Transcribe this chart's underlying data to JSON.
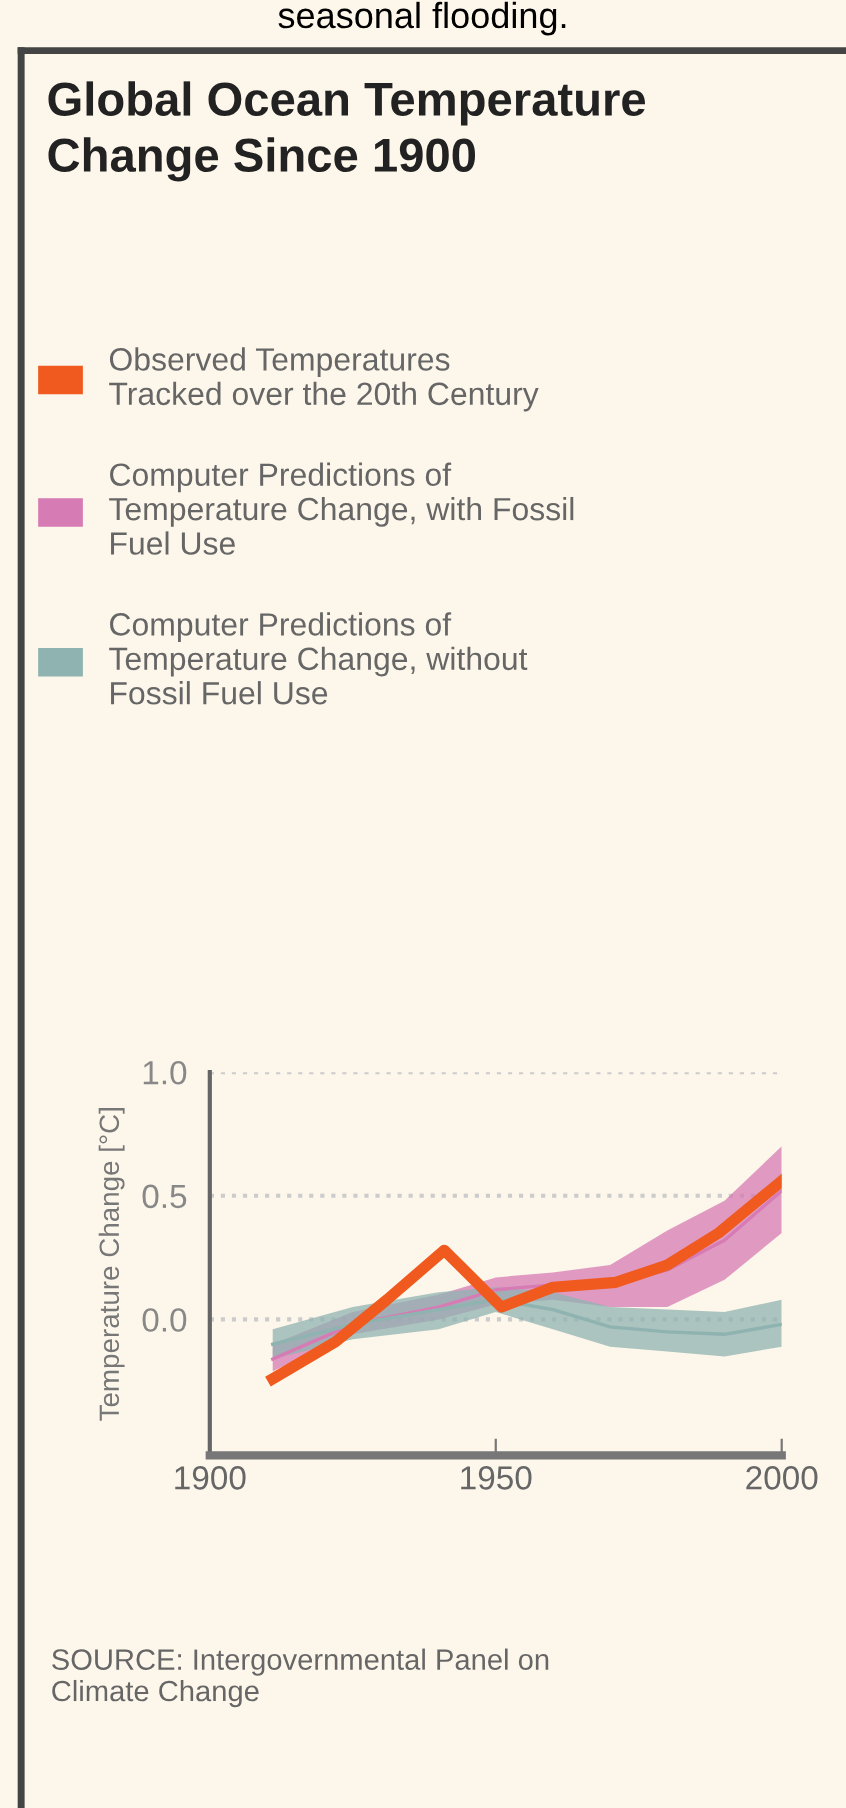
{
  "chart_data": {
    "type": "line",
    "title": "Global Ocean Temperature\nChange Since 1900",
    "ylabel": "Temperature Change [°C]",
    "xlim": [
      1900,
      2000
    ],
    "xticks": [
      1900,
      1950,
      2000
    ],
    "ylim": [
      -0.55,
      1.0
    ],
    "yticks": [
      {
        "value": 0,
        "label": "0.0"
      },
      {
        "value": 0.5,
        "label": "0.5"
      },
      {
        "value": 1.0,
        "label": "1.0"
      }
    ],
    "grid": "y",
    "legend": "top left",
    "series": [
      {
        "name": "Observed Temperatures\nTracked over the 20th Century",
        "color": "#f05a1e",
        "x": [
          1911,
          1922,
          1931,
          1941,
          1951,
          1960,
          1971,
          1980,
          1989,
          2000
        ],
        "values": [
          -0.24,
          -0.09,
          0.08,
          0.28,
          0.05,
          0.13,
          0.15,
          0.22,
          0.35,
          0.56
        ]
      },
      {
        "name": "Computer Predictions of\nTemperature Change, with Fossil\nFuel Use",
        "type": "line",
        "color": "#d67bb4",
        "x": [
          1911,
          1925,
          1940,
          1950,
          1960,
          1970,
          1980,
          1990,
          2000
        ],
        "values": [
          -0.16,
          -0.02,
          0.05,
          0.12,
          0.14,
          0.14,
          0.2,
          0.32,
          0.52
        ],
        "lower": [
          -0.21,
          -0.06,
          0.0,
          0.06,
          0.08,
          0.05,
          0.05,
          0.16,
          0.35
        ],
        "upper": [
          -0.1,
          0.03,
          0.1,
          0.17,
          0.19,
          0.22,
          0.36,
          0.48,
          0.7
        ]
      },
      {
        "name": "Computer Predictions of\nTemperature Change, without\nFossil Fuel Use",
        "type": "line",
        "color": "#8fb3b0",
        "x": [
          1911,
          1925,
          1940,
          1950,
          1960,
          1970,
          1980,
          1990,
          2000
        ],
        "values": [
          -0.1,
          -0.02,
          0.04,
          0.08,
          0.04,
          -0.03,
          -0.05,
          -0.06,
          -0.02
        ],
        "lower": [
          -0.16,
          -0.08,
          -0.04,
          0.03,
          -0.04,
          -0.11,
          -0.13,
          -0.15,
          -0.11
        ],
        "upper": [
          -0.04,
          0.05,
          0.11,
          0.13,
          0.11,
          0.05,
          0.04,
          0.03,
          0.08
        ]
      }
    ],
    "annotations": [
      "seasonal flooding.",
      "SOURCE: Intergovernmental Panel on\nClimate Change"
    ]
  }
}
